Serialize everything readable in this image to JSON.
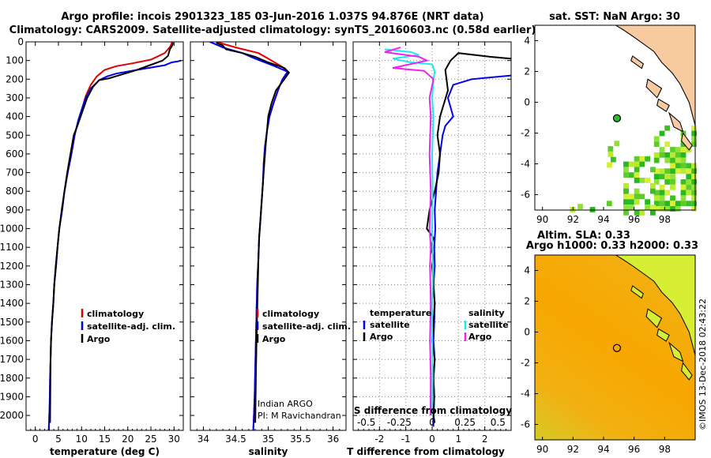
{
  "title": {
    "line1": "Argo profile: incois 2901323_185 03-Jun-2016 1.037S 94.876E (NRT data)",
    "line2": "Climatology: CARS2009. Satellite-adjusted climatology: synTS_20160603.nc (0.58d earlier)"
  },
  "colors": {
    "climatology": "#e00000",
    "satellite": "#0000ee",
    "argo": "#000000",
    "satellite_s": "#22e5f0",
    "argo_s": "#ee22ee",
    "land": "#f7caa0",
    "sla_bg": "#f5a300"
  },
  "chart_data": [
    {
      "type": "line",
      "id": "temperature",
      "xlabel": "temperature (deg C)",
      "ylabel": "",
      "xlim": [
        -2,
        32
      ],
      "ylim": [
        2080,
        0
      ],
      "xticks": [
        0,
        5,
        10,
        15,
        20,
        25,
        30
      ],
      "yticks": [
        0,
        100,
        200,
        300,
        400,
        500,
        600,
        700,
        800,
        900,
        1000,
        1100,
        1200,
        1300,
        1400,
        1500,
        1600,
        1700,
        1800,
        1900,
        2000
      ],
      "legend": [
        "climatology",
        "satellite-adj. clim.",
        "Argo"
      ],
      "series": [
        {
          "name": "climatology",
          "color": "#e00000",
          "x": [
            29.6,
            29.2,
            28,
            25,
            21,
            17.5,
            15,
            13.3,
            12,
            10.9,
            10.2,
            9.3,
            8.5,
            7.8,
            7,
            6.3,
            5.8,
            5.2,
            4.8,
            4.5,
            4.1,
            3.9,
            3.6,
            3.4,
            3.2,
            3.1,
            2.9
          ],
          "y": [
            0,
            25,
            60,
            95,
            115,
            130,
            150,
            185,
            230,
            290,
            350,
            420,
            500,
            600,
            700,
            800,
            900,
            1000,
            1100,
            1200,
            1300,
            1400,
            1500,
            1600,
            1800,
            1950,
            2080
          ]
        },
        {
          "name": "satellite-adj. clim.",
          "color": "#0000ee",
          "x": [
            31.5,
            30.8,
            29.5,
            28,
            22,
            17.5,
            15.5,
            13.8,
            12,
            10.9,
            10.2,
            9.3,
            8.5,
            7.8,
            7,
            6.3,
            5.8,
            5.2,
            4.8,
            4.5,
            4.1,
            3.9,
            3.6,
            3.4,
            3.2,
            3.1,
            2.9
          ],
          "y": [
            100,
            105,
            110,
            125,
            150,
            170,
            185,
            205,
            250,
            300,
            350,
            420,
            500,
            600,
            700,
            800,
            900,
            1000,
            1100,
            1200,
            1300,
            1400,
            1500,
            1600,
            1800,
            1950,
            2080
          ]
        },
        {
          "name": "Argo",
          "color": "#000000",
          "x": [
            29.8,
            29.6,
            29.1,
            28.7,
            27.5,
            22,
            18,
            16,
            13.8,
            12.5,
            11.2,
            10.5,
            9.8,
            9.1,
            8.3,
            7.6,
            6.9,
            6.3,
            5.7,
            5.2,
            4.8,
            4.4,
            4.1,
            3.9,
            3.6,
            3.4,
            3.3,
            3.2
          ],
          "y": [
            5,
            20,
            40,
            75,
            100,
            150,
            180,
            195,
            205,
            240,
            300,
            350,
            400,
            450,
            500,
            600,
            700,
            800,
            900,
            1000,
            1100,
            1200,
            1300,
            1400,
            1500,
            1600,
            1700,
            2040
          ]
        }
      ]
    },
    {
      "type": "line",
      "id": "salinity",
      "xlabel": "salinity",
      "ylabel": "",
      "xlim": [
        33.8,
        36.2
      ],
      "ylim": [
        2080,
        0
      ],
      "xticks": [
        34,
        34.5,
        35,
        35.5,
        36
      ],
      "tick_labels": [
        "34",
        "34.5",
        "35",
        "35.5",
        "36"
      ],
      "legend": [
        "climatology",
        "satellite-adj. clim.",
        "Argo"
      ],
      "annotations": [
        "Indian ARGO",
        "PI: M Ravichandran"
      ],
      "series": [
        {
          "name": "climatology",
          "color": "#e00000",
          "x": [
            34.2,
            34.5,
            34.85,
            35.0,
            35.2,
            35.3,
            35.22,
            35.15,
            35.08,
            35.02,
            34.98,
            34.95,
            34.93,
            34.92,
            34.9,
            34.88,
            34.86,
            34.85,
            34.83,
            34.82,
            34.81,
            34.8,
            34.79,
            34.78,
            34.77
          ],
          "y": [
            0,
            30,
            60,
            90,
            130,
            160,
            200,
            260,
            330,
            400,
            480,
            560,
            650,
            750,
            850,
            950,
            1050,
            1150,
            1300,
            1450,
            1600,
            1750,
            1900,
            2000,
            2080
          ]
        },
        {
          "name": "satellite-adj. clim.",
          "color": "#0000ee",
          "x": [
            34.1,
            34.3,
            34.6,
            34.8,
            35.1,
            35.3,
            35.22,
            35.15,
            35.08,
            35.02,
            34.98,
            34.95,
            34.93,
            34.92,
            34.9,
            34.88,
            34.86,
            34.85,
            34.83,
            34.82,
            34.81,
            34.8,
            34.79,
            34.78,
            34.77
          ],
          "y": [
            0,
            30,
            60,
            90,
            130,
            160,
            200,
            260,
            330,
            400,
            480,
            560,
            650,
            750,
            850,
            950,
            1050,
            1150,
            1300,
            1450,
            1600,
            1750,
            1900,
            2000,
            2080
          ]
        },
        {
          "name": "Argo",
          "color": "#000000",
          "x": [
            34.2,
            34.3,
            34.35,
            34.6,
            34.8,
            35.0,
            35.25,
            35.32,
            35.25,
            35.12,
            35.05,
            35.0,
            34.98,
            34.96,
            34.94,
            34.92,
            34.9,
            34.88,
            34.86,
            34.85,
            34.84,
            34.83,
            34.82,
            34.81,
            34.8
          ],
          "y": [
            5,
            20,
            40,
            60,
            80,
            110,
            140,
            165,
            200,
            260,
            330,
            400,
            480,
            560,
            650,
            750,
            850,
            950,
            1050,
            1150,
            1300,
            1450,
            1600,
            1800,
            2040
          ]
        }
      ]
    },
    {
      "type": "line",
      "id": "differences",
      "xlabel": "T difference from climatology",
      "top_label": "S difference from climatology",
      "xlim": [
        -3,
        3
      ],
      "ylim": [
        2080,
        0
      ],
      "xticks": [
        -2,
        -1,
        0,
        1,
        2
      ],
      "top_xticks": [
        -0.5,
        -0.25,
        0,
        0.25,
        0.5
      ],
      "legend_left": [
        "temperature",
        "satellite",
        "Argo"
      ],
      "legend_right": [
        "salinity",
        "satellite",
        "Argo"
      ],
      "series": [
        {
          "name": "T satellite",
          "color": "#0000ee",
          "x": [
            3,
            1.5,
            0.8,
            0.6,
            0.8,
            0.5,
            0.4,
            0.3,
            0.2,
            0.15,
            0.1,
            0.12,
            0.08,
            0.1,
            0.05,
            0.1,
            0.08,
            0.05,
            0.1,
            0.05,
            0.08,
            0.05,
            0.04,
            0.05
          ],
          "y": [
            180,
            200,
            230,
            300,
            400,
            450,
            500,
            600,
            700,
            800,
            900,
            1000,
            1100,
            1200,
            1300,
            1400,
            1500,
            1600,
            1700,
            1800,
            1900,
            2000,
            2040,
            2060
          ]
        },
        {
          "name": "T Argo",
          "color": "#000000",
          "x": [
            3,
            2.2,
            1.0,
            0.7,
            0.5,
            0.6,
            0.3,
            0.2,
            0.3,
            0.25,
            0.1,
            -0.1,
            -0.2,
            0.05,
            -0.05,
            0.05,
            0.0,
            0.05,
            0.1,
            0.05,
            0.0,
            0.1,
            0.05,
            0.08,
            0.05,
            0.1
          ],
          "y": [
            90,
            80,
            60,
            100,
            150,
            260,
            400,
            500,
            600,
            700,
            800,
            900,
            1000,
            1050,
            1100,
            1150,
            1200,
            1300,
            1400,
            1500,
            1600,
            1700,
            1800,
            1900,
            2000,
            2040
          ]
        },
        {
          "name": "S satellite",
          "color": "#22e5f0",
          "x": [
            -1.8,
            -0.8,
            -0.5,
            -1.5,
            -0.8,
            0,
            0.1,
            0.05,
            0.0,
            0.05,
            0.0,
            0.02,
            0.0,
            0.03,
            0.0,
            0.02,
            0.0
          ],
          "y": [
            40,
            55,
            70,
            90,
            110,
            120,
            160,
            200,
            300,
            400,
            600,
            800,
            1000,
            1200,
            1500,
            1800,
            2000
          ]
        },
        {
          "name": "S Argo",
          "color": "#ee22ee",
          "x": [
            -1.2,
            -1.8,
            -0.5,
            -0.2,
            -1.5,
            -0.3,
            0.05,
            -0.1,
            -0.05,
            -0.1,
            -0.05,
            -0.1,
            -0.05,
            -0.08,
            -0.05,
            -0.08,
            -0.05,
            -0.06
          ],
          "y": [
            30,
            55,
            80,
            100,
            140,
            155,
            200,
            300,
            400,
            600,
            800,
            1000,
            1100,
            1200,
            1400,
            1600,
            1800,
            2000
          ]
        }
      ]
    },
    {
      "type": "heatmap",
      "id": "sst_map",
      "title": "sat. SST: NaN Argo: 30",
      "xlim": [
        89.5,
        100
      ],
      "ylim": [
        -7,
        5
      ],
      "xticks": [
        90,
        92,
        94,
        96,
        98
      ],
      "yticks": [
        -6,
        -4,
        -2,
        0,
        2,
        4
      ],
      "argo_position": {
        "lon": 94.876,
        "lat": -1.037
      }
    },
    {
      "type": "heatmap",
      "id": "sla_map",
      "title": "Altim. SLA: 0.33",
      "subtitle": "Argo h1000: 0.33 h2000: 0.33",
      "xlim": [
        89.5,
        100
      ],
      "ylim": [
        -7,
        5
      ],
      "xticks": [
        90,
        92,
        94,
        96,
        98
      ],
      "yticks": [
        -6,
        -4,
        -2,
        0,
        2,
        4
      ],
      "argo_position": {
        "lon": 94.876,
        "lat": -1.037
      }
    }
  ],
  "footer": {
    "stamp": "©IMOS 13-Dec-2018 02:43:22"
  }
}
